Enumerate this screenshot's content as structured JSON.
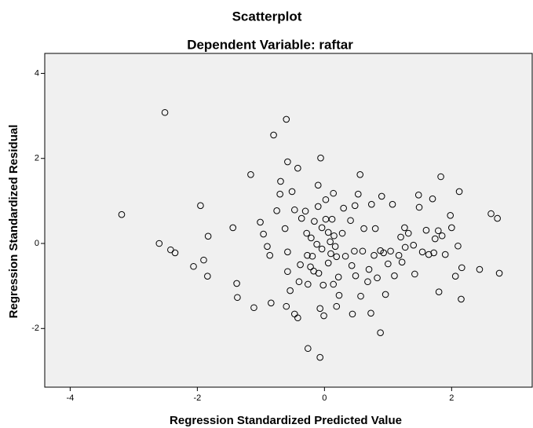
{
  "chart_data": {
    "type": "scatter",
    "title": "Scatterplot",
    "subtitle": "Dependent Variable: raftar",
    "x_label": "Regression Standardized Predicted Value",
    "y_label": "Regression Standardized Residual",
    "xlim": [
      -4.4,
      3.28
    ],
    "ylim": [
      -3.38,
      4.47
    ],
    "xticks": [
      -4,
      -2,
      0,
      2
    ],
    "yticks": [
      -2,
      0,
      2,
      4
    ],
    "color": "#000000",
    "background": "#f0f0f0",
    "x": [
      -2.51,
      -3.19,
      -2.6,
      -2.42,
      -2.35,
      -2.06,
      -1.95,
      -1.9,
      -1.84,
      -1.83,
      -1.44,
      -1.38,
      -1.37,
      -1.16,
      -1.11,
      -1.01,
      -0.96,
      -0.9,
      -0.86,
      -0.84,
      -0.8,
      -0.75,
      -0.69,
      -0.7,
      -0.62,
      -0.6,
      -0.58,
      -0.58,
      -0.58,
      -0.54,
      -0.6,
      -0.51,
      -0.47,
      -0.42,
      -0.47,
      -0.36,
      -0.3,
      -0.28,
      -0.27,
      -0.38,
      -0.4,
      -0.42,
      -0.26,
      -0.22,
      -0.21,
      -0.19,
      -0.17,
      -0.26,
      -0.16,
      -0.12,
      -0.1,
      -0.1,
      -0.06,
      -0.04,
      -0.04,
      -0.09,
      -0.02,
      -0.07,
      -0.01,
      -0.07,
      0.02,
      0.02,
      0.06,
      0.09,
      0.1,
      0.06,
      0.12,
      0.15,
      0.17,
      0.19,
      0.14,
      0.14,
      0.19,
      0.22,
      0.23,
      0.28,
      0.3,
      0.33,
      0.41,
      0.43,
      0.47,
      0.49,
      0.44,
      0.48,
      0.53,
      0.56,
      0.57,
      0.6,
      0.62,
      0.68,
      0.7,
      0.73,
      0.74,
      0.78,
      0.8,
      0.83,
      0.88,
      0.88,
      0.9,
      0.93,
      0.96,
      1.0,
      1.04,
      1.07,
      1.1,
      1.17,
      1.2,
      1.22,
      1.26,
      1.27,
      1.32,
      1.4,
      1.42,
      1.48,
      1.49,
      1.54,
      1.6,
      1.64,
      1.7,
      1.74,
      1.79,
      1.85,
      1.9,
      1.98,
      2.0,
      2.06,
      2.1,
      1.8,
      1.83,
      2.12,
      2.15,
      2.44,
      1.72,
      2.16,
      2.62,
      2.75,
      2.72
    ],
    "values": [
      3.08,
      0.68,
      0.0,
      -0.15,
      -0.22,
      -0.54,
      0.89,
      -0.39,
      -0.77,
      0.17,
      0.37,
      -0.94,
      -1.27,
      1.62,
      -1.51,
      0.5,
      0.22,
      -0.07,
      -0.28,
      -1.4,
      2.55,
      0.77,
      1.46,
      1.16,
      0.35,
      2.92,
      1.92,
      -0.2,
      -0.66,
      -1.11,
      -1.48,
      1.22,
      0.79,
      1.77,
      -1.66,
      0.59,
      0.76,
      0.24,
      -0.28,
      -0.5,
      -0.9,
      -1.75,
      -0.96,
      -0.55,
      0.13,
      -0.3,
      -0.65,
      -2.47,
      0.52,
      -0.02,
      1.37,
      0.87,
      2.01,
      0.37,
      -0.13,
      -0.7,
      -0.98,
      -1.53,
      -1.7,
      -2.68,
      1.03,
      0.57,
      0.26,
      0.04,
      -0.24,
      -0.46,
      0.57,
      0.18,
      -0.07,
      -0.31,
      1.18,
      -0.96,
      -1.48,
      -0.79,
      -1.22,
      0.24,
      0.83,
      -0.3,
      0.54,
      -0.52,
      -0.18,
      -0.76,
      -1.66,
      0.89,
      1.16,
      1.62,
      -1.24,
      -0.18,
      0.35,
      -0.9,
      -0.61,
      -1.64,
      0.92,
      -0.28,
      0.35,
      -0.81,
      -0.17,
      -2.1,
      1.11,
      -0.22,
      -1.2,
      -0.48,
      -0.18,
      0.92,
      -0.76,
      -0.28,
      0.15,
      -0.44,
      0.37,
      -0.09,
      0.24,
      -0.04,
      -0.72,
      1.14,
      0.85,
      -0.2,
      0.31,
      -0.26,
      1.05,
      0.11,
      0.3,
      0.18,
      -0.26,
      0.66,
      0.37,
      -0.77,
      -0.06,
      -1.14,
      1.57,
      1.22,
      -1.31,
      -0.61,
      -0.22,
      -0.57,
      0.7,
      -0.7,
      0.59
    ]
  }
}
